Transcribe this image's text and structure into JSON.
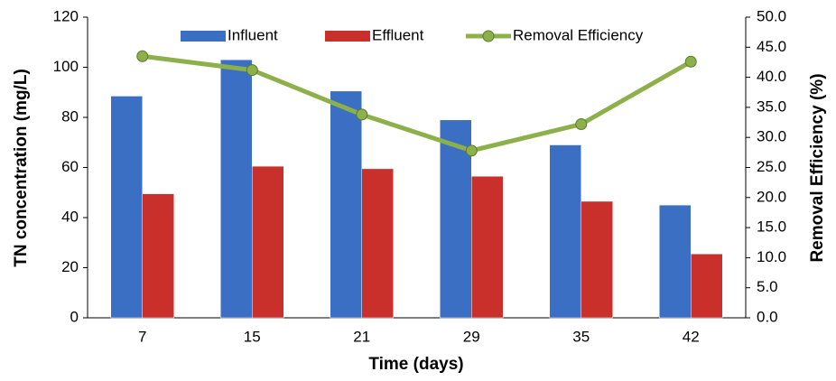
{
  "chart_data": {
    "type": "bar",
    "xlabel": "Time (days)",
    "ylabel": "TN concentration (mg/L)",
    "y2label": "Removal Efficiency (%)",
    "categories": [
      "7",
      "15",
      "21",
      "29",
      "35",
      "42"
    ],
    "series": [
      {
        "name": "Influent",
        "type": "bar",
        "color": "#3a6fc4",
        "values": [
          88.5,
          103,
          90.5,
          79,
          69,
          45
        ]
      },
      {
        "name": "Effluent",
        "type": "bar",
        "color": "#c9302c",
        "values": [
          49.5,
          60.5,
          59.5,
          56.5,
          46.5,
          25.5
        ]
      },
      {
        "name": "Removal Efficiency",
        "type": "line",
        "axis": "y2",
        "color": "#8db04a",
        "values": [
          43.5,
          41.2,
          33.8,
          27.8,
          32.2,
          42.6
        ]
      }
    ],
    "ylim": [
      0,
      120
    ],
    "yticks": [
      0,
      20,
      40,
      60,
      80,
      100,
      120
    ],
    "y2lim": [
      0,
      50
    ],
    "y2ticks": [
      {
        "value": 0,
        "label": "0.0"
      },
      {
        "value": 5,
        "label": "5.0"
      },
      {
        "value": 10,
        "label": "10.0"
      },
      {
        "value": 15,
        "label": "15.0"
      },
      {
        "value": 20,
        "label": "20.0"
      },
      {
        "value": 25,
        "label": "25.0"
      },
      {
        "value": 30,
        "label": "30.0"
      },
      {
        "value": 35,
        "label": "35.0"
      },
      {
        "value": 40,
        "label": "40.0"
      },
      {
        "value": 45,
        "label": "45.0"
      },
      {
        "value": 50,
        "label": "50.0"
      }
    ],
    "legend": "top",
    "grid": false
  }
}
